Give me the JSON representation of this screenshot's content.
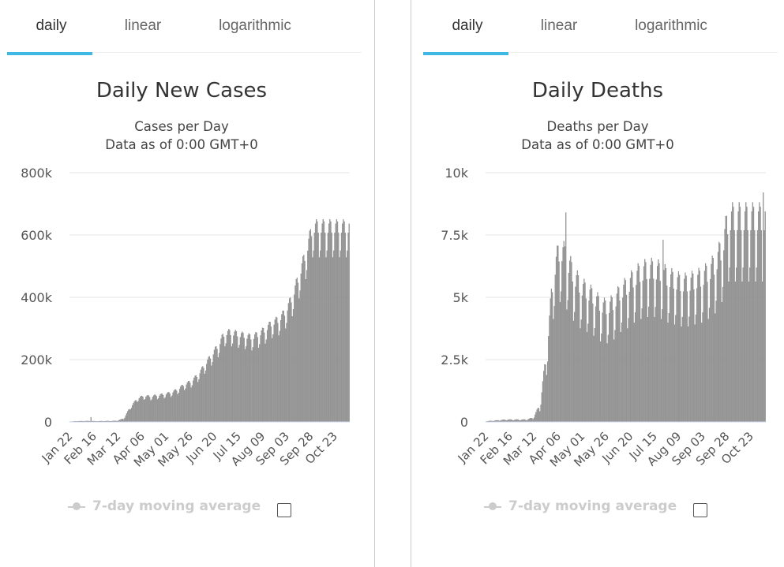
{
  "panels": [
    {
      "tabs": [
        "daily",
        "linear",
        "logarithmic"
      ],
      "active_tab": 0,
      "title": "Daily New Cases",
      "subtitle": "Cases per Day",
      "subtitle2": "Data as of 0:00 GMT+0",
      "legend_label": "7-day moving average",
      "chart_data": {
        "type": "bar",
        "title": "Daily New Cases",
        "subtitle": "Cases per Day",
        "color": "#999999",
        "ylim": [
          0,
          800000
        ],
        "y_ticks": [
          0,
          200000,
          400000,
          600000,
          800000
        ],
        "y_tick_labels": [
          "0",
          "200k",
          "400k",
          "600k",
          "800k"
        ],
        "x_tick_labels": [
          "Jan 22",
          "Feb 16",
          "Mar 12",
          "Apr 06",
          "May 01",
          "May 26",
          "Jun 20",
          "Jul 15",
          "Aug 09",
          "Sep 03",
          "Sep 28",
          "Oct 23"
        ],
        "x_start_date": "2020-01-22",
        "x_end_date": "2020-11-07",
        "grid": true,
        "legend": "bottom-left",
        "weekly_values": [
          700,
          2000,
          2500,
          2500,
          2000,
          2500,
          2500,
          3000,
          10000,
          45000,
          72000,
          80000,
          78000,
          82000,
          85000,
          90000,
          100000,
          115000,
          125000,
          145000,
          175000,
          205000,
          235000,
          275000,
          275000,
          270000,
          265000,
          260000,
          270000,
          285000,
          305000,
          315000,
          340000,
          385000,
          450000,
          520000,
          600000
        ],
        "weekly_amplitude": [
          0.05,
          0.2,
          0.2,
          0.2,
          0.2,
          0.2,
          0.2,
          0.2,
          0.2,
          0.12,
          0.12,
          0.12,
          0.12,
          0.12,
          0.12,
          0.12,
          0.12,
          0.12,
          0.12,
          0.12,
          0.12,
          0.12,
          0.12,
          0.12,
          0.12,
          0.12,
          0.12,
          0.12,
          0.12,
          0.12,
          0.12,
          0.12,
          0.12,
          0.12,
          0.12,
          0.12,
          0.12
        ],
        "spikes": [
          {
            "x": "2020-02-13",
            "y": 15000
          }
        ]
      }
    },
    {
      "tabs": [
        "daily",
        "linear",
        "logarithmic"
      ],
      "active_tab": 0,
      "title": "Daily Deaths",
      "subtitle": "Deaths per Day",
      "subtitle2": "Data as of 0:00 GMT+0",
      "legend_label": "7-day moving average",
      "chart_data": {
        "type": "bar",
        "title": "Daily Deaths",
        "subtitle": "Deaths per Day",
        "color": "#999999",
        "ylim": [
          0,
          10000
        ],
        "y_ticks": [
          0,
          2500,
          5000,
          7500,
          10000
        ],
        "y_tick_labels": [
          "0",
          "2.5k",
          "5k",
          "7.5k",
          "10k"
        ],
        "x_tick_labels": [
          "Jan 22",
          "Feb 16",
          "Mar 12",
          "Apr 06",
          "May 01",
          "May 26",
          "Jun 20",
          "Jul 15",
          "Aug 09",
          "Sep 03",
          "Sep 28",
          "Oct 23"
        ],
        "x_start_date": "2020-01-22",
        "x_end_date": "2020-11-07",
        "grid": true,
        "legend": "bottom-left",
        "weekly_values": [
          20,
          40,
          60,
          80,
          80,
          80,
          80,
          150,
          600,
          2500,
          5500,
          6400,
          6000,
          5400,
          5000,
          4800,
          4600,
          4300,
          4200,
          4400,
          4800,
          5000,
          5300,
          5500,
          5600,
          5600,
          5500,
          5300,
          5200,
          5100,
          5100,
          5200,
          5300,
          5500,
          5800,
          6400,
          7500
        ],
        "weekly_amplitude": [
          0.3,
          0.3,
          0.3,
          0.3,
          0.3,
          0.3,
          0.3,
          0.3,
          0.3,
          0.25,
          0.25,
          0.25,
          0.25,
          0.25,
          0.25,
          0.25,
          0.25,
          0.25,
          0.25,
          0.25,
          0.25,
          0.25,
          0.25,
          0.25,
          0.25,
          0.25,
          0.25,
          0.25,
          0.25,
          0.25,
          0.25,
          0.25,
          0.25,
          0.25,
          0.25,
          0.25,
          0.25
        ],
        "spikes": [
          {
            "x": "2020-04-14",
            "y": 8400
          },
          {
            "x": "2020-07-24",
            "y": 7300
          },
          {
            "x": "2020-11-05",
            "y": 9200
          }
        ]
      }
    }
  ]
}
